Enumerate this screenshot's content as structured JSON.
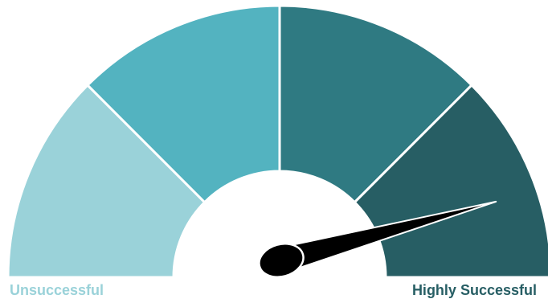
{
  "gauge": {
    "segments": [
      {
        "color": "#9ad2d9"
      },
      {
        "color": "#53b3c0"
      },
      {
        "color": "#2f7a82"
      },
      {
        "color": "#275e64"
      }
    ],
    "needle": {
      "color": "#000000",
      "level": 0.915
    },
    "labels": {
      "min": "Unsuccessful",
      "max": "Highly Successful",
      "min_color": "#9ad2d9",
      "max_color": "#275e64"
    }
  }
}
